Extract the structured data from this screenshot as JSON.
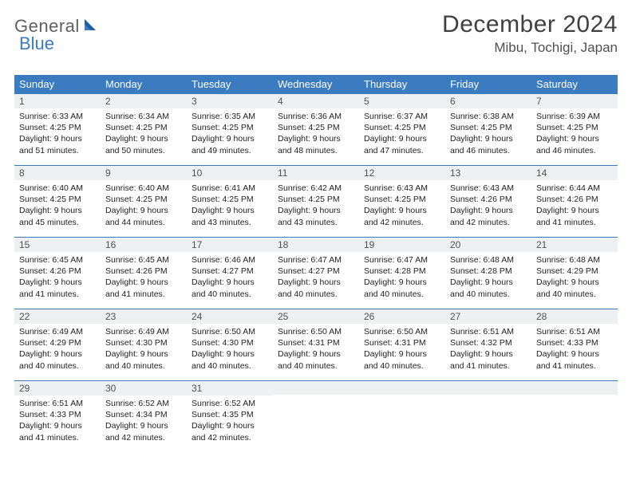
{
  "logo": {
    "text1": "General",
    "text2": "Blue"
  },
  "title": "December 2024",
  "location": "Mibu, Tochigi, Japan",
  "colors": {
    "header_bg": "#3b7bbf",
    "header_text": "#ffffff",
    "daynum_bg": "#eef0f2",
    "border": "#3b7bbf",
    "body_text": "#222222",
    "title_text": "#404040"
  },
  "weekdays": [
    "Sunday",
    "Monday",
    "Tuesday",
    "Wednesday",
    "Thursday",
    "Friday",
    "Saturday"
  ],
  "weeks": [
    [
      {
        "n": "1",
        "sr": "Sunrise: 6:33 AM",
        "ss": "Sunset: 4:25 PM",
        "d1": "Daylight: 9 hours",
        "d2": "and 51 minutes."
      },
      {
        "n": "2",
        "sr": "Sunrise: 6:34 AM",
        "ss": "Sunset: 4:25 PM",
        "d1": "Daylight: 9 hours",
        "d2": "and 50 minutes."
      },
      {
        "n": "3",
        "sr": "Sunrise: 6:35 AM",
        "ss": "Sunset: 4:25 PM",
        "d1": "Daylight: 9 hours",
        "d2": "and 49 minutes."
      },
      {
        "n": "4",
        "sr": "Sunrise: 6:36 AM",
        "ss": "Sunset: 4:25 PM",
        "d1": "Daylight: 9 hours",
        "d2": "and 48 minutes."
      },
      {
        "n": "5",
        "sr": "Sunrise: 6:37 AM",
        "ss": "Sunset: 4:25 PM",
        "d1": "Daylight: 9 hours",
        "d2": "and 47 minutes."
      },
      {
        "n": "6",
        "sr": "Sunrise: 6:38 AM",
        "ss": "Sunset: 4:25 PM",
        "d1": "Daylight: 9 hours",
        "d2": "and 46 minutes."
      },
      {
        "n": "7",
        "sr": "Sunrise: 6:39 AM",
        "ss": "Sunset: 4:25 PM",
        "d1": "Daylight: 9 hours",
        "d2": "and 46 minutes."
      }
    ],
    [
      {
        "n": "8",
        "sr": "Sunrise: 6:40 AM",
        "ss": "Sunset: 4:25 PM",
        "d1": "Daylight: 9 hours",
        "d2": "and 45 minutes."
      },
      {
        "n": "9",
        "sr": "Sunrise: 6:40 AM",
        "ss": "Sunset: 4:25 PM",
        "d1": "Daylight: 9 hours",
        "d2": "and 44 minutes."
      },
      {
        "n": "10",
        "sr": "Sunrise: 6:41 AM",
        "ss": "Sunset: 4:25 PM",
        "d1": "Daylight: 9 hours",
        "d2": "and 43 minutes."
      },
      {
        "n": "11",
        "sr": "Sunrise: 6:42 AM",
        "ss": "Sunset: 4:25 PM",
        "d1": "Daylight: 9 hours",
        "d2": "and 43 minutes."
      },
      {
        "n": "12",
        "sr": "Sunrise: 6:43 AM",
        "ss": "Sunset: 4:25 PM",
        "d1": "Daylight: 9 hours",
        "d2": "and 42 minutes."
      },
      {
        "n": "13",
        "sr": "Sunrise: 6:43 AM",
        "ss": "Sunset: 4:26 PM",
        "d1": "Daylight: 9 hours",
        "d2": "and 42 minutes."
      },
      {
        "n": "14",
        "sr": "Sunrise: 6:44 AM",
        "ss": "Sunset: 4:26 PM",
        "d1": "Daylight: 9 hours",
        "d2": "and 41 minutes."
      }
    ],
    [
      {
        "n": "15",
        "sr": "Sunrise: 6:45 AM",
        "ss": "Sunset: 4:26 PM",
        "d1": "Daylight: 9 hours",
        "d2": "and 41 minutes."
      },
      {
        "n": "16",
        "sr": "Sunrise: 6:45 AM",
        "ss": "Sunset: 4:26 PM",
        "d1": "Daylight: 9 hours",
        "d2": "and 41 minutes."
      },
      {
        "n": "17",
        "sr": "Sunrise: 6:46 AM",
        "ss": "Sunset: 4:27 PM",
        "d1": "Daylight: 9 hours",
        "d2": "and 40 minutes."
      },
      {
        "n": "18",
        "sr": "Sunrise: 6:47 AM",
        "ss": "Sunset: 4:27 PM",
        "d1": "Daylight: 9 hours",
        "d2": "and 40 minutes."
      },
      {
        "n": "19",
        "sr": "Sunrise: 6:47 AM",
        "ss": "Sunset: 4:28 PM",
        "d1": "Daylight: 9 hours",
        "d2": "and 40 minutes."
      },
      {
        "n": "20",
        "sr": "Sunrise: 6:48 AM",
        "ss": "Sunset: 4:28 PM",
        "d1": "Daylight: 9 hours",
        "d2": "and 40 minutes."
      },
      {
        "n": "21",
        "sr": "Sunrise: 6:48 AM",
        "ss": "Sunset: 4:29 PM",
        "d1": "Daylight: 9 hours",
        "d2": "and 40 minutes."
      }
    ],
    [
      {
        "n": "22",
        "sr": "Sunrise: 6:49 AM",
        "ss": "Sunset: 4:29 PM",
        "d1": "Daylight: 9 hours",
        "d2": "and 40 minutes."
      },
      {
        "n": "23",
        "sr": "Sunrise: 6:49 AM",
        "ss": "Sunset: 4:30 PM",
        "d1": "Daylight: 9 hours",
        "d2": "and 40 minutes."
      },
      {
        "n": "24",
        "sr": "Sunrise: 6:50 AM",
        "ss": "Sunset: 4:30 PM",
        "d1": "Daylight: 9 hours",
        "d2": "and 40 minutes."
      },
      {
        "n": "25",
        "sr": "Sunrise: 6:50 AM",
        "ss": "Sunset: 4:31 PM",
        "d1": "Daylight: 9 hours",
        "d2": "and 40 minutes."
      },
      {
        "n": "26",
        "sr": "Sunrise: 6:50 AM",
        "ss": "Sunset: 4:31 PM",
        "d1": "Daylight: 9 hours",
        "d2": "and 40 minutes."
      },
      {
        "n": "27",
        "sr": "Sunrise: 6:51 AM",
        "ss": "Sunset: 4:32 PM",
        "d1": "Daylight: 9 hours",
        "d2": "and 41 minutes."
      },
      {
        "n": "28",
        "sr": "Sunrise: 6:51 AM",
        "ss": "Sunset: 4:33 PM",
        "d1": "Daylight: 9 hours",
        "d2": "and 41 minutes."
      }
    ],
    [
      {
        "n": "29",
        "sr": "Sunrise: 6:51 AM",
        "ss": "Sunset: 4:33 PM",
        "d1": "Daylight: 9 hours",
        "d2": "and 41 minutes."
      },
      {
        "n": "30",
        "sr": "Sunrise: 6:52 AM",
        "ss": "Sunset: 4:34 PM",
        "d1": "Daylight: 9 hours",
        "d2": "and 42 minutes."
      },
      {
        "n": "31",
        "sr": "Sunrise: 6:52 AM",
        "ss": "Sunset: 4:35 PM",
        "d1": "Daylight: 9 hours",
        "d2": "and 42 minutes."
      },
      null,
      null,
      null,
      null
    ]
  ]
}
